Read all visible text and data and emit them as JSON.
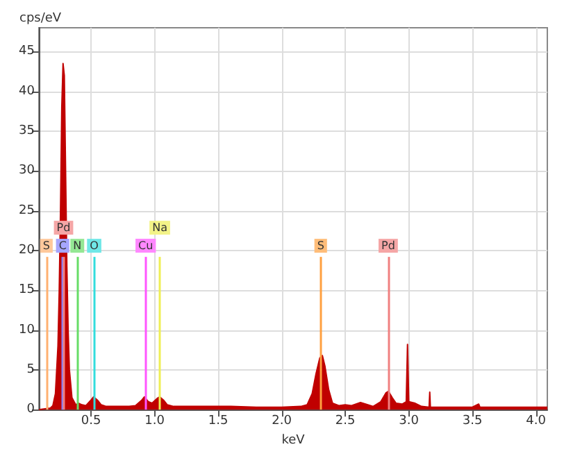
{
  "chart_data": {
    "type": "area",
    "xlabel": "keV",
    "ylabel": "cps/eV",
    "x": [
      0.09,
      0.18,
      0.2,
      0.22,
      0.24,
      0.25,
      0.26,
      0.27,
      0.28,
      0.29,
      0.3,
      0.31,
      0.32,
      0.33,
      0.35,
      0.38,
      0.4,
      0.43,
      0.46,
      0.5,
      0.52,
      0.55,
      0.58,
      0.62,
      0.7,
      0.8,
      0.85,
      0.9,
      0.92,
      0.95,
      0.98,
      1.02,
      1.04,
      1.07,
      1.1,
      1.15,
      1.3,
      1.6,
      1.8,
      2.0,
      2.15,
      2.2,
      2.24,
      2.27,
      2.3,
      2.32,
      2.34,
      2.37,
      2.4,
      2.45,
      2.5,
      2.55,
      2.62,
      2.66,
      2.72,
      2.78,
      2.82,
      2.84,
      2.87,
      2.9,
      2.95,
      2.98,
      2.99,
      3.0,
      3.05,
      3.1,
      3.16,
      3.165,
      3.17,
      3.3,
      3.5,
      3.55,
      3.56,
      4.09
    ],
    "series": [
      {
        "color": "#c00000",
        "values": [
          0,
          0.2,
          0.5,
          2,
          8,
          15,
          25,
          38,
          43.5,
          42,
          30,
          18,
          10,
          5,
          1.5,
          0.6,
          0.8,
          0.6,
          0.5,
          1.2,
          1.6,
          1.2,
          0.6,
          0.4,
          0.4,
          0.4,
          0.5,
          1.2,
          1.6,
          1.0,
          0.8,
          1.4,
          1.6,
          1.2,
          0.6,
          0.4,
          0.4,
          0.4,
          0.3,
          0.3,
          0.4,
          0.6,
          2,
          4.5,
          6.5,
          6.8,
          5.5,
          2.5,
          0.8,
          0.5,
          0.6,
          0.5,
          0.9,
          0.7,
          0.4,
          1.0,
          2.1,
          2.3,
          1.5,
          0.8,
          0.7,
          1.0,
          8.2,
          1.0,
          0.8,
          0.4,
          0.3,
          2.2,
          0.3,
          0.3,
          0.3,
          0.7,
          0.3,
          0.3
        ]
      }
    ],
    "xlim": [
      0.09,
      4.09
    ],
    "xticks": [
      {
        "value": 0.5,
        "label": "0.5"
      },
      {
        "value": 1,
        "label": "1.0"
      },
      {
        "value": 1.5,
        "label": "1.5"
      },
      {
        "value": 2,
        "label": "2.0"
      },
      {
        "value": 2.5,
        "label": "2.5"
      },
      {
        "value": 3,
        "label": "3.0"
      },
      {
        "value": 3.5,
        "label": "3.5"
      },
      {
        "value": 4,
        "label": "4.0"
      }
    ],
    "ylim": [
      0,
      48
    ],
    "yticks": [
      0,
      5,
      10,
      15,
      20,
      25,
      30,
      35,
      40,
      45
    ],
    "grid": true,
    "ref_lines": [
      {
        "axis": "x",
        "value": 0.149,
        "label": "S",
        "color": "#ffb070"
      },
      {
        "axis": "x",
        "value": 0.277,
        "label": "C",
        "color": "#8080ff"
      },
      {
        "axis": "x",
        "value": 0.284,
        "label": "Pd",
        "color": "#f08080"
      },
      {
        "axis": "x",
        "value": 0.392,
        "label": "N",
        "color": "#66dd66"
      },
      {
        "axis": "x",
        "value": 0.525,
        "label": "O",
        "color": "#33dddd"
      },
      {
        "axis": "x",
        "value": 0.93,
        "label": "Cu",
        "color": "#ff55ff"
      },
      {
        "axis": "x",
        "value": 1.041,
        "label": "Na",
        "color": "#eeee55"
      },
      {
        "axis": "x",
        "value": 2.307,
        "label": "S",
        "color": "#ffa040"
      },
      {
        "axis": "x",
        "value": 2.838,
        "label": "Pd",
        "color": "#f08080"
      }
    ]
  }
}
